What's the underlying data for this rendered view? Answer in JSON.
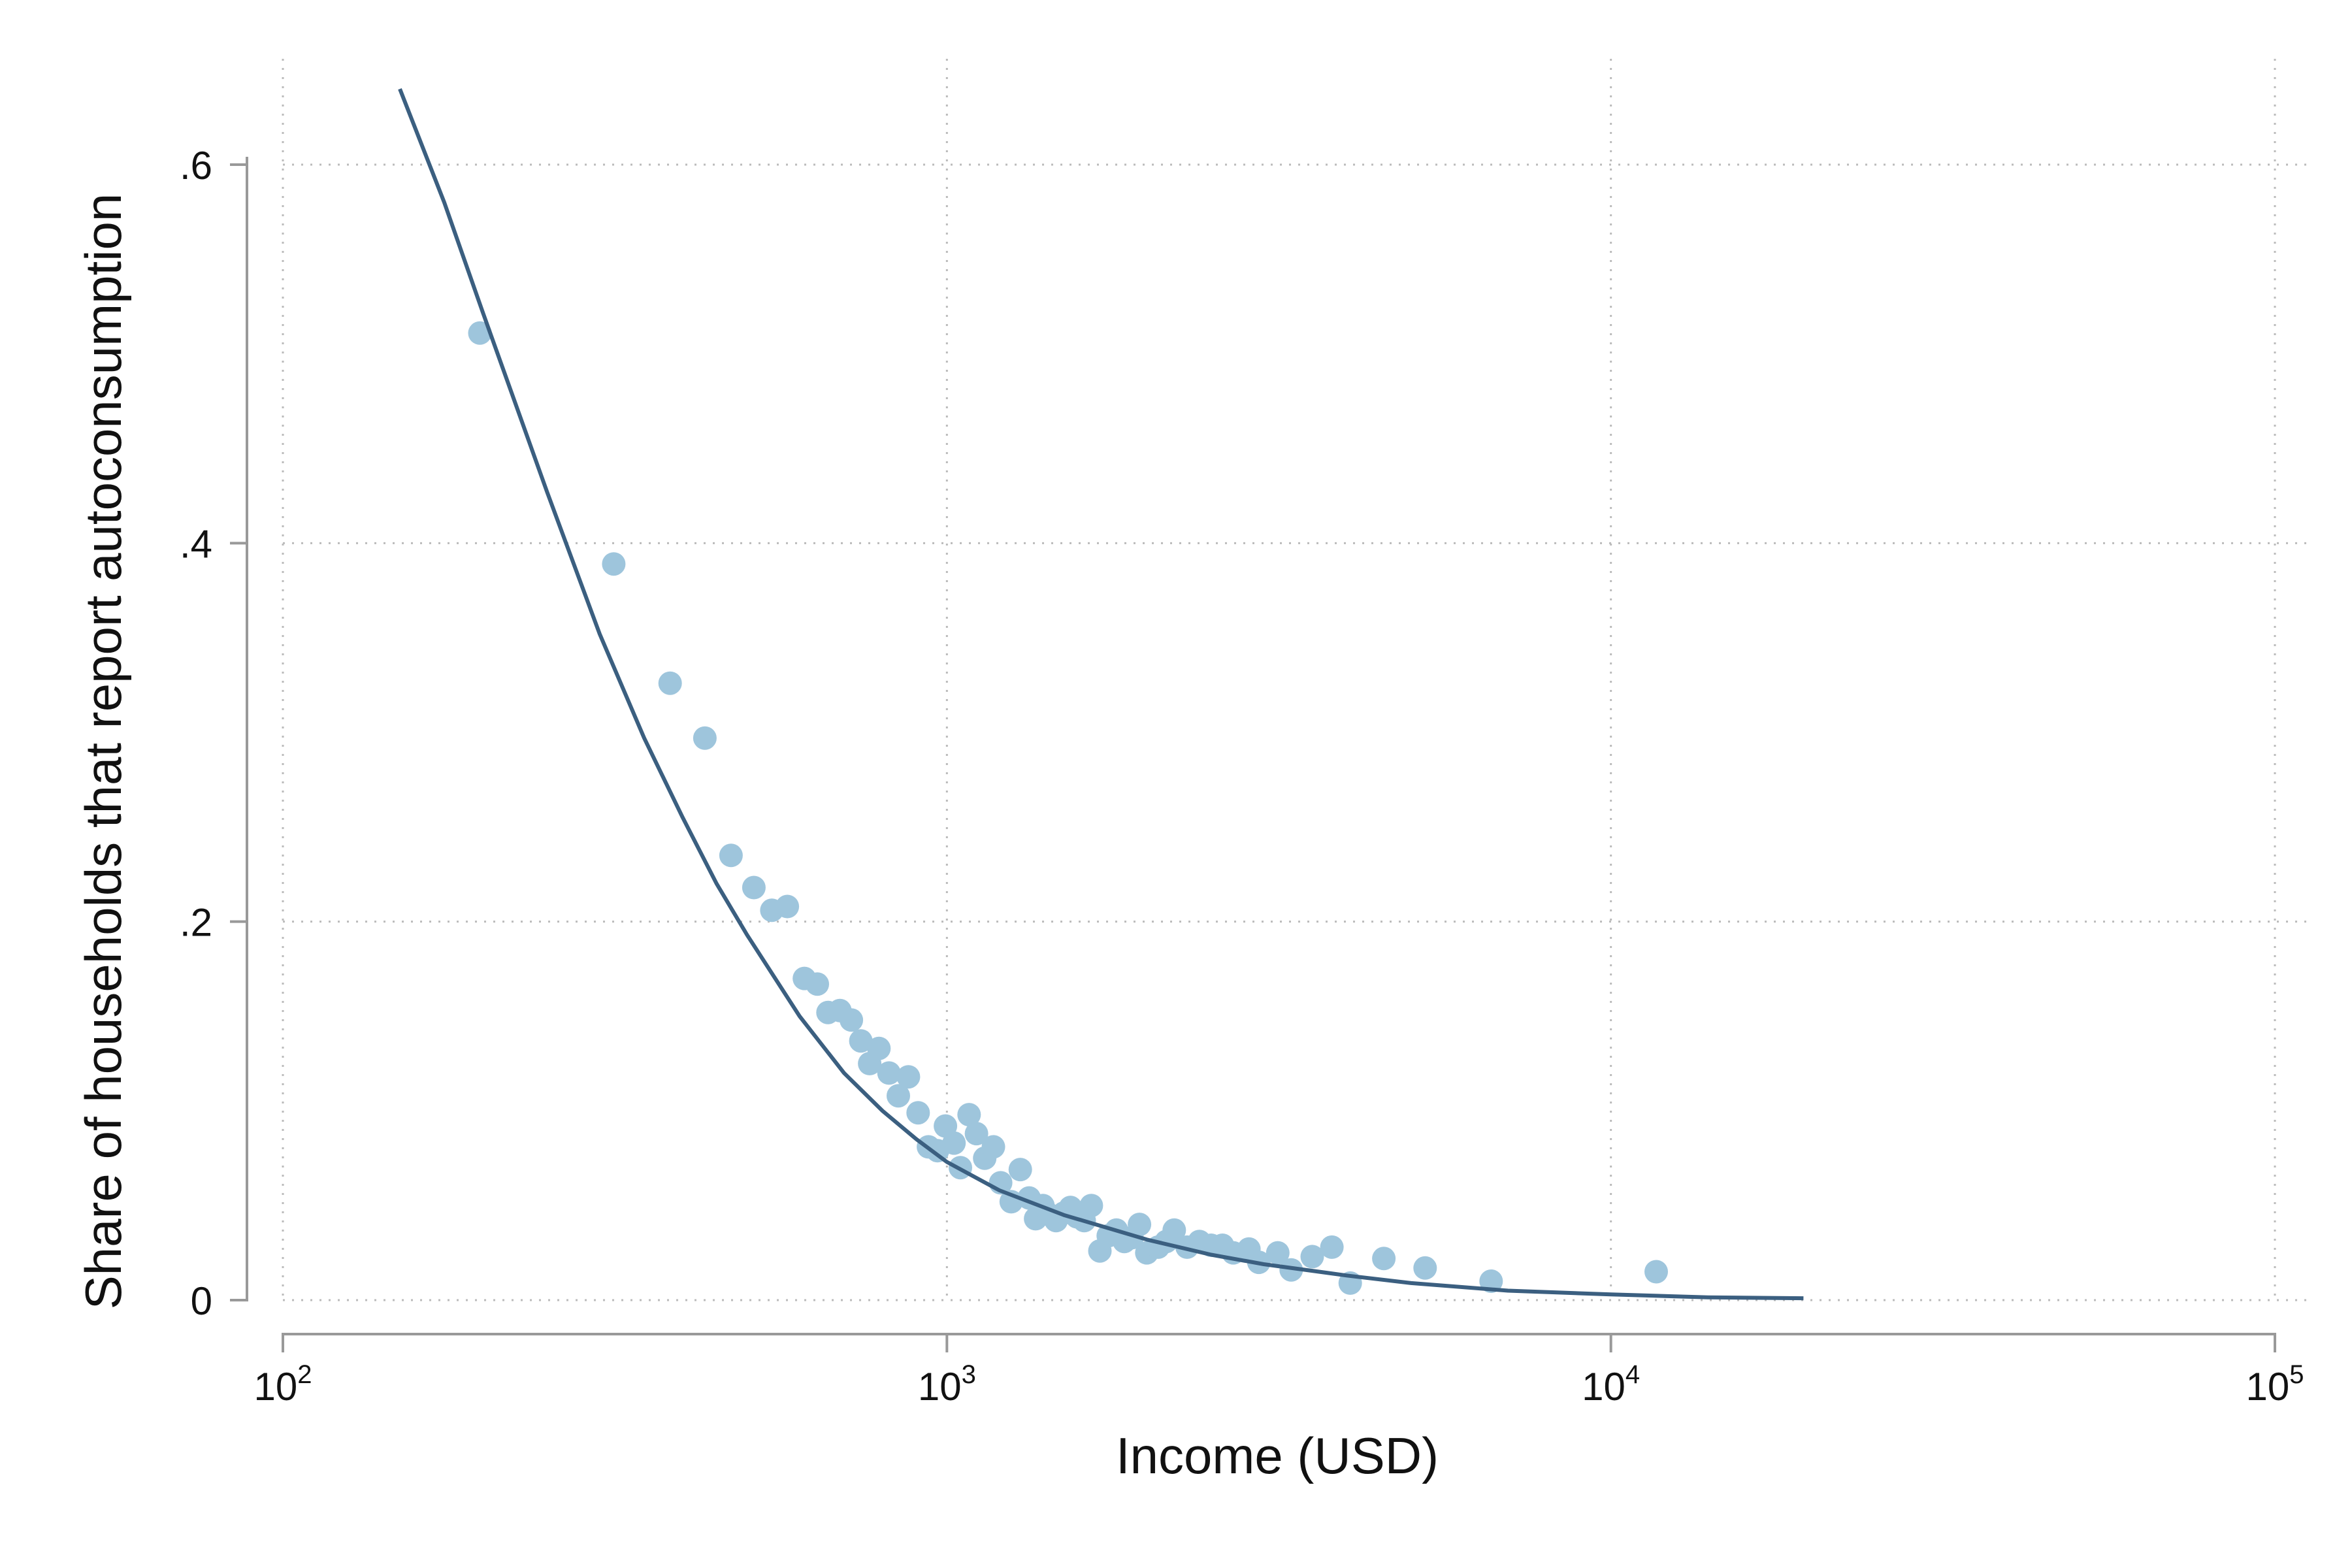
{
  "chart_data": {
    "type": "scatter",
    "title": "",
    "xlabel": "Income (USD)",
    "ylabel": "Share of households that report autoconsumption",
    "x_scale": "log",
    "xlim": [
      100,
      100000
    ],
    "ylim": [
      0,
      0.64
    ],
    "grid": true,
    "legend": "none",
    "colors": {
      "points": "#9ec5dc",
      "fit_line": "#3b5f80",
      "axis": "#999999",
      "grid": "#bbbbbb"
    },
    "x_ticks": [
      {
        "value": 100,
        "base": "10",
        "exp": "2"
      },
      {
        "value": 1000,
        "base": "10",
        "exp": "3"
      },
      {
        "value": 10000,
        "base": "10",
        "exp": "4"
      },
      {
        "value": 100000,
        "base": "10",
        "exp": "5"
      }
    ],
    "y_ticks": [
      {
        "value": 0,
        "label": "0"
      },
      {
        "value": 0.2,
        "label": ".2"
      },
      {
        "value": 0.4,
        "label": ".4"
      },
      {
        "value": 0.6,
        "label": ".6"
      }
    ],
    "series": [
      {
        "type": "scatter",
        "points": [
          [
            198,
            0.511
          ],
          [
            315,
            0.389
          ],
          [
            383,
            0.326
          ],
          [
            432,
            0.297
          ],
          [
            473,
            0.235
          ],
          [
            512,
            0.218
          ],
          [
            545,
            0.206
          ],
          [
            575,
            0.208
          ],
          [
            610,
            0.17
          ],
          [
            638,
            0.167
          ],
          [
            662,
            0.152
          ],
          [
            690,
            0.153
          ],
          [
            718,
            0.148
          ],
          [
            742,
            0.137
          ],
          [
            765,
            0.125
          ],
          [
            790,
            0.133
          ],
          [
            818,
            0.12
          ],
          [
            845,
            0.108
          ],
          [
            875,
            0.118
          ],
          [
            905,
            0.099
          ],
          [
            938,
            0.081
          ],
          [
            968,
            0.079
          ],
          [
            995,
            0.092
          ],
          [
            1025,
            0.083
          ],
          [
            1048,
            0.07
          ],
          [
            1080,
            0.098
          ],
          [
            1108,
            0.088
          ],
          [
            1140,
            0.075
          ],
          [
            1175,
            0.081
          ],
          [
            1205,
            0.062
          ],
          [
            1250,
            0.052
          ],
          [
            1290,
            0.069
          ],
          [
            1330,
            0.054
          ],
          [
            1360,
            0.043
          ],
          [
            1395,
            0.05
          ],
          [
            1430,
            0.045
          ],
          [
            1460,
            0.042
          ],
          [
            1500,
            0.046
          ],
          [
            1535,
            0.049
          ],
          [
            1570,
            0.044
          ],
          [
            1610,
            0.042
          ],
          [
            1650,
            0.05
          ],
          [
            1700,
            0.026
          ],
          [
            1750,
            0.034
          ],
          [
            1800,
            0.037
          ],
          [
            1850,
            0.031
          ],
          [
            1900,
            0.033
          ],
          [
            1950,
            0.04
          ],
          [
            2000,
            0.025
          ],
          [
            2080,
            0.028
          ],
          [
            2140,
            0.031
          ],
          [
            2200,
            0.037
          ],
          [
            2300,
            0.028
          ],
          [
            2400,
            0.031
          ],
          [
            2500,
            0.029
          ],
          [
            2600,
            0.029
          ],
          [
            2700,
            0.025
          ],
          [
            2850,
            0.027
          ],
          [
            2950,
            0.02
          ],
          [
            3150,
            0.025
          ],
          [
            3300,
            0.016
          ],
          [
            3550,
            0.023
          ],
          [
            3800,
            0.028
          ],
          [
            4050,
            0.009
          ],
          [
            4550,
            0.022
          ],
          [
            5250,
            0.017
          ],
          [
            6600,
            0.01
          ],
          [
            11700,
            0.015
          ]
        ]
      },
      {
        "type": "line",
        "points": [
          [
            150,
            0.64
          ],
          [
            175,
            0.58
          ],
          [
            200,
            0.522
          ],
          [
            250,
            0.427
          ],
          [
            300,
            0.352
          ],
          [
            350,
            0.297
          ],
          [
            400,
            0.255
          ],
          [
            450,
            0.22
          ],
          [
            500,
            0.193
          ],
          [
            600,
            0.15
          ],
          [
            700,
            0.12
          ],
          [
            800,
            0.1
          ],
          [
            900,
            0.085
          ],
          [
            1000,
            0.073
          ],
          [
            1200,
            0.058
          ],
          [
            1500,
            0.045
          ],
          [
            2000,
            0.032
          ],
          [
            2500,
            0.024
          ],
          [
            3000,
            0.019
          ],
          [
            4000,
            0.013
          ],
          [
            5000,
            0.009
          ],
          [
            7000,
            0.005
          ],
          [
            10000,
            0.003
          ],
          [
            14000,
            0.0015
          ],
          [
            19500,
            0.001
          ]
        ]
      }
    ]
  }
}
